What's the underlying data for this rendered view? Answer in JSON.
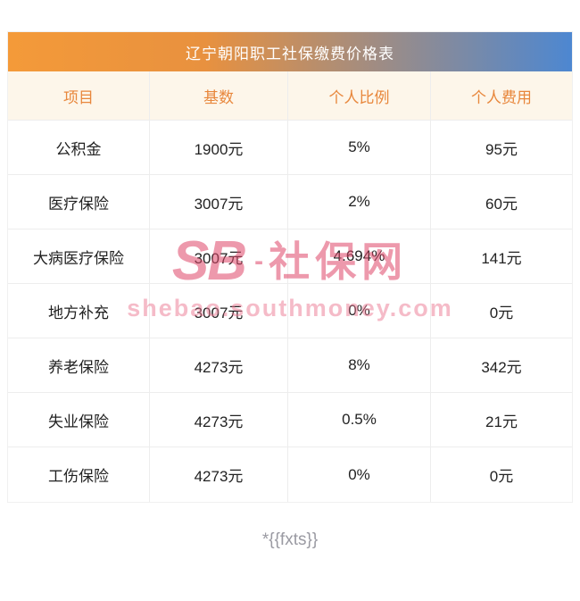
{
  "chart_data": {
    "type": "table",
    "title": "辽宁朝阳职工社保缴费价格表",
    "columns": [
      "项目",
      "基数",
      "个人比例",
      "个人费用"
    ],
    "rows": [
      [
        "公积金",
        "1900元",
        "5%",
        "95元"
      ],
      [
        "医疗保险",
        "3007元",
        "2%",
        "60元"
      ],
      [
        "大病医疗保险",
        "3007元",
        "4.694%",
        "141元"
      ],
      [
        "地方补充",
        "3007元",
        "0%",
        "0元"
      ],
      [
        "养老保险",
        "4273元",
        "8%",
        "342元"
      ],
      [
        "失业保险",
        "4273元",
        "0.5%",
        "21元"
      ],
      [
        "工伤保险",
        "4273元",
        "0%",
        "0元"
      ]
    ]
  },
  "colors": {
    "title_gradient_start": "#f49a39",
    "title_gradient_end": "#4d87d1",
    "header_bg": "#fdf6ea",
    "header_text": "#e8873c",
    "watermark_pink": "#de4668"
  },
  "watermark": {
    "logo": "SB",
    "dash": "-",
    "site_name": "社保网",
    "site_url": "shebao.southmoney.com"
  },
  "footer": {
    "note": "*{{fxts}}"
  }
}
